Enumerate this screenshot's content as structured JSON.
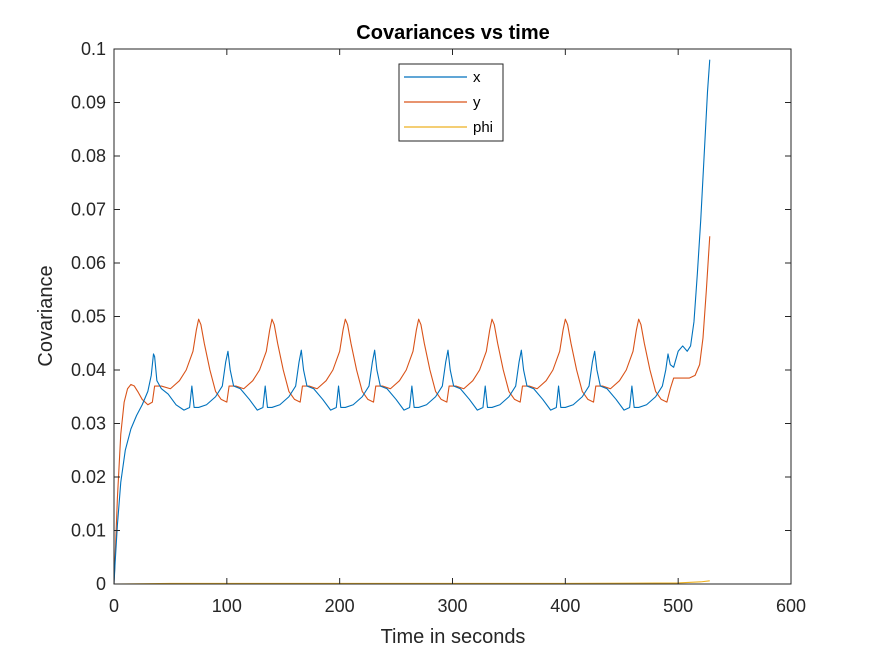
{
  "chart_data": {
    "type": "line",
    "title": "Covariances vs time",
    "xlabel": "Time in seconds",
    "ylabel": "Covariance",
    "xlim": [
      0,
      600
    ],
    "ylim": [
      0,
      0.1
    ],
    "xticks": [
      0,
      100,
      200,
      300,
      400,
      500,
      600
    ],
    "xtick_labels": [
      "0",
      "100",
      "200",
      "300",
      "400",
      "500",
      "600"
    ],
    "yticks": [
      0,
      0.01,
      0.02,
      0.03,
      0.04,
      0.05,
      0.06,
      0.07,
      0.08,
      0.09,
      0.1
    ],
    "ytick_labels": [
      "0",
      "0.01",
      "0.02",
      "0.03",
      "0.04",
      "0.05",
      "0.06",
      "0.07",
      "0.08",
      "0.09",
      "0.1"
    ],
    "grid": false,
    "legend_position": "top-center",
    "series": [
      {
        "name": "x",
        "color": "#0072BD",
        "points": [
          [
            0,
            0
          ],
          [
            1,
            0.004
          ],
          [
            3,
            0.011
          ],
          [
            6,
            0.019
          ],
          [
            10,
            0.025
          ],
          [
            15,
            0.029
          ],
          [
            20,
            0.0315
          ],
          [
            25,
            0.0335
          ],
          [
            30,
            0.036
          ],
          [
            33,
            0.039
          ],
          [
            35,
            0.043
          ],
          [
            36,
            0.0425
          ],
          [
            38,
            0.038
          ],
          [
            42,
            0.0365
          ],
          [
            48,
            0.0355
          ],
          [
            55,
            0.0335
          ],
          [
            62,
            0.0325
          ],
          [
            67,
            0.033
          ],
          [
            69,
            0.037
          ],
          [
            71,
            0.033
          ],
          [
            75,
            0.033
          ],
          [
            82,
            0.0335
          ],
          [
            90,
            0.035
          ],
          [
            96,
            0.037
          ],
          [
            99,
            0.0415
          ],
          [
            101,
            0.0435
          ],
          [
            103,
            0.04
          ],
          [
            106,
            0.037
          ],
          [
            112,
            0.0365
          ],
          [
            120,
            0.0345
          ],
          [
            127,
            0.0325
          ],
          [
            132,
            0.033
          ],
          [
            134,
            0.037
          ],
          [
            136,
            0.033
          ],
          [
            140,
            0.033
          ],
          [
            147,
            0.0335
          ],
          [
            155,
            0.035
          ],
          [
            161,
            0.037
          ],
          [
            164,
            0.0415
          ],
          [
            166,
            0.0437
          ],
          [
            168,
            0.04
          ],
          [
            171,
            0.037
          ],
          [
            177,
            0.0365
          ],
          [
            185,
            0.0345
          ],
          [
            192,
            0.0325
          ],
          [
            197,
            0.033
          ],
          [
            199,
            0.037
          ],
          [
            201,
            0.033
          ],
          [
            205,
            0.033
          ],
          [
            212,
            0.0335
          ],
          [
            220,
            0.035
          ],
          [
            226,
            0.037
          ],
          [
            229,
            0.0415
          ],
          [
            231,
            0.0437
          ],
          [
            233,
            0.04
          ],
          [
            236,
            0.037
          ],
          [
            242,
            0.0365
          ],
          [
            250,
            0.0345
          ],
          [
            257,
            0.0325
          ],
          [
            262,
            0.033
          ],
          [
            264,
            0.037
          ],
          [
            266,
            0.033
          ],
          [
            270,
            0.033
          ],
          [
            277,
            0.0335
          ],
          [
            285,
            0.035
          ],
          [
            291,
            0.037
          ],
          [
            294,
            0.0415
          ],
          [
            296,
            0.0437
          ],
          [
            298,
            0.04
          ],
          [
            301,
            0.037
          ],
          [
            307,
            0.0365
          ],
          [
            315,
            0.0345
          ],
          [
            322,
            0.0325
          ],
          [
            327,
            0.033
          ],
          [
            329,
            0.037
          ],
          [
            331,
            0.033
          ],
          [
            335,
            0.033
          ],
          [
            342,
            0.0335
          ],
          [
            350,
            0.035
          ],
          [
            356,
            0.037
          ],
          [
            359,
            0.0415
          ],
          [
            361,
            0.0437
          ],
          [
            363,
            0.04
          ],
          [
            366,
            0.037
          ],
          [
            372,
            0.0365
          ],
          [
            380,
            0.0345
          ],
          [
            387,
            0.0325
          ],
          [
            392,
            0.033
          ],
          [
            394,
            0.037
          ],
          [
            396,
            0.033
          ],
          [
            400,
            0.033
          ],
          [
            407,
            0.0335
          ],
          [
            415,
            0.035
          ],
          [
            421,
            0.037
          ],
          [
            424,
            0.0415
          ],
          [
            426,
            0.0435
          ],
          [
            428,
            0.04
          ],
          [
            431,
            0.037
          ],
          [
            437,
            0.0365
          ],
          [
            445,
            0.0345
          ],
          [
            452,
            0.0325
          ],
          [
            457,
            0.033
          ],
          [
            459,
            0.037
          ],
          [
            461,
            0.033
          ],
          [
            465,
            0.033
          ],
          [
            472,
            0.0335
          ],
          [
            480,
            0.035
          ],
          [
            486,
            0.037
          ],
          [
            489,
            0.04
          ],
          [
            491,
            0.043
          ],
          [
            493,
            0.041
          ],
          [
            496,
            0.0405
          ],
          [
            500,
            0.0435
          ],
          [
            504,
            0.0445
          ],
          [
            508,
            0.0435
          ],
          [
            511,
            0.0445
          ],
          [
            514,
            0.049
          ],
          [
            517,
            0.058
          ],
          [
            520,
            0.068
          ],
          [
            523,
            0.08
          ],
          [
            526,
            0.092
          ],
          [
            528,
            0.098
          ]
        ]
      },
      {
        "name": "y",
        "color": "#D95319",
        "points": [
          [
            0,
            0
          ],
          [
            1,
            0.005
          ],
          [
            3,
            0.016
          ],
          [
            6,
            0.028
          ],
          [
            9,
            0.034
          ],
          [
            12,
            0.0365
          ],
          [
            15,
            0.0373
          ],
          [
            18,
            0.037
          ],
          [
            21,
            0.036
          ],
          [
            25,
            0.0345
          ],
          [
            30,
            0.0335
          ],
          [
            34,
            0.034
          ],
          [
            36,
            0.037
          ],
          [
            42,
            0.037
          ],
          [
            50,
            0.0365
          ],
          [
            58,
            0.038
          ],
          [
            64,
            0.04
          ],
          [
            70,
            0.0435
          ],
          [
            73,
            0.0475
          ],
          [
            75,
            0.0495
          ],
          [
            77,
            0.0485
          ],
          [
            80,
            0.045
          ],
          [
            85,
            0.04
          ],
          [
            90,
            0.036
          ],
          [
            95,
            0.0345
          ],
          [
            100,
            0.034
          ],
          [
            102,
            0.037
          ],
          [
            108,
            0.037
          ],
          [
            115,
            0.0365
          ],
          [
            123,
            0.038
          ],
          [
            129,
            0.04
          ],
          [
            135,
            0.0435
          ],
          [
            138,
            0.0475
          ],
          [
            140,
            0.0495
          ],
          [
            142,
            0.0485
          ],
          [
            145,
            0.045
          ],
          [
            150,
            0.04
          ],
          [
            155,
            0.036
          ],
          [
            160,
            0.0345
          ],
          [
            165,
            0.034
          ],
          [
            167,
            0.037
          ],
          [
            173,
            0.037
          ],
          [
            180,
            0.0365
          ],
          [
            188,
            0.038
          ],
          [
            194,
            0.04
          ],
          [
            200,
            0.0435
          ],
          [
            203,
            0.0475
          ],
          [
            205,
            0.0495
          ],
          [
            207,
            0.0485
          ],
          [
            210,
            0.045
          ],
          [
            215,
            0.04
          ],
          [
            220,
            0.036
          ],
          [
            225,
            0.0345
          ],
          [
            230,
            0.034
          ],
          [
            232,
            0.037
          ],
          [
            238,
            0.037
          ],
          [
            245,
            0.0365
          ],
          [
            253,
            0.038
          ],
          [
            259,
            0.04
          ],
          [
            265,
            0.0435
          ],
          [
            268,
            0.0475
          ],
          [
            270,
            0.0495
          ],
          [
            272,
            0.0485
          ],
          [
            275,
            0.045
          ],
          [
            280,
            0.04
          ],
          [
            285,
            0.036
          ],
          [
            290,
            0.0345
          ],
          [
            295,
            0.034
          ],
          [
            297,
            0.037
          ],
          [
            303,
            0.037
          ],
          [
            310,
            0.0365
          ],
          [
            318,
            0.038
          ],
          [
            324,
            0.04
          ],
          [
            330,
            0.0435
          ],
          [
            333,
            0.0475
          ],
          [
            335,
            0.0495
          ],
          [
            337,
            0.0485
          ],
          [
            340,
            0.045
          ],
          [
            345,
            0.04
          ],
          [
            350,
            0.036
          ],
          [
            355,
            0.0345
          ],
          [
            360,
            0.034
          ],
          [
            362,
            0.037
          ],
          [
            368,
            0.037
          ],
          [
            375,
            0.0365
          ],
          [
            383,
            0.038
          ],
          [
            389,
            0.04
          ],
          [
            395,
            0.0435
          ],
          [
            398,
            0.0475
          ],
          [
            400,
            0.0495
          ],
          [
            402,
            0.0485
          ],
          [
            405,
            0.045
          ],
          [
            410,
            0.04
          ],
          [
            415,
            0.036
          ],
          [
            420,
            0.0345
          ],
          [
            425,
            0.034
          ],
          [
            427,
            0.037
          ],
          [
            433,
            0.037
          ],
          [
            440,
            0.0365
          ],
          [
            448,
            0.038
          ],
          [
            454,
            0.04
          ],
          [
            460,
            0.0435
          ],
          [
            463,
            0.0475
          ],
          [
            465,
            0.0495
          ],
          [
            467,
            0.0485
          ],
          [
            470,
            0.045
          ],
          [
            475,
            0.04
          ],
          [
            480,
            0.036
          ],
          [
            485,
            0.0345
          ],
          [
            490,
            0.034
          ],
          [
            493,
            0.0365
          ],
          [
            496,
            0.0385
          ],
          [
            503,
            0.0385
          ],
          [
            510,
            0.0385
          ],
          [
            515,
            0.039
          ],
          [
            519,
            0.041
          ],
          [
            522,
            0.046
          ],
          [
            525,
            0.055
          ],
          [
            528,
            0.065
          ]
        ]
      },
      {
        "name": "phi",
        "color": "#EDB120",
        "points": [
          [
            0,
            0
          ],
          [
            50,
            0.0001
          ],
          [
            100,
            0.0001
          ],
          [
            200,
            0.0001
          ],
          [
            300,
            0.0001
          ],
          [
            400,
            0.0001
          ],
          [
            500,
            0.0002
          ],
          [
            520,
            0.0004
          ],
          [
            528,
            0.0006
          ]
        ]
      }
    ]
  }
}
